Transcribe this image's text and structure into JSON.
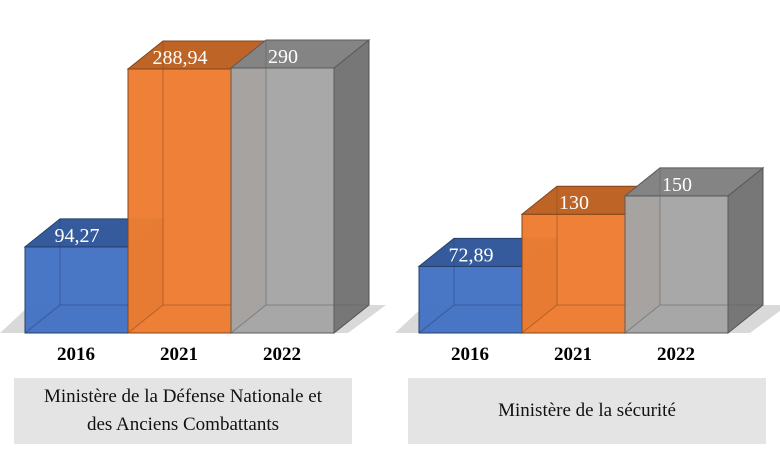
{
  "chart_data": {
    "type": "bar",
    "style": "3d-clustered",
    "ylim": [
      0,
      300
    ],
    "groups": [
      {
        "label_lines": [
          "Ministère de la Défense Nationale et",
          "des Anciens Combattants"
        ],
        "categories": [
          "2016",
          "2021",
          "2022"
        ],
        "values": [
          94.27,
          288.94,
          290
        ],
        "value_labels": [
          "94,27",
          "288,94",
          "290"
        ]
      },
      {
        "label_lines": [
          "Ministère de la sécurité"
        ],
        "categories": [
          "2016",
          "2021",
          "2022"
        ],
        "values": [
          72.89,
          130,
          150
        ],
        "value_labels": [
          "72,89",
          "130",
          "150"
        ]
      }
    ],
    "colors": [
      "#4472c4",
      "#ed7d31",
      "#a5a5a5"
    ],
    "floor_color": "#d9d9d9"
  }
}
